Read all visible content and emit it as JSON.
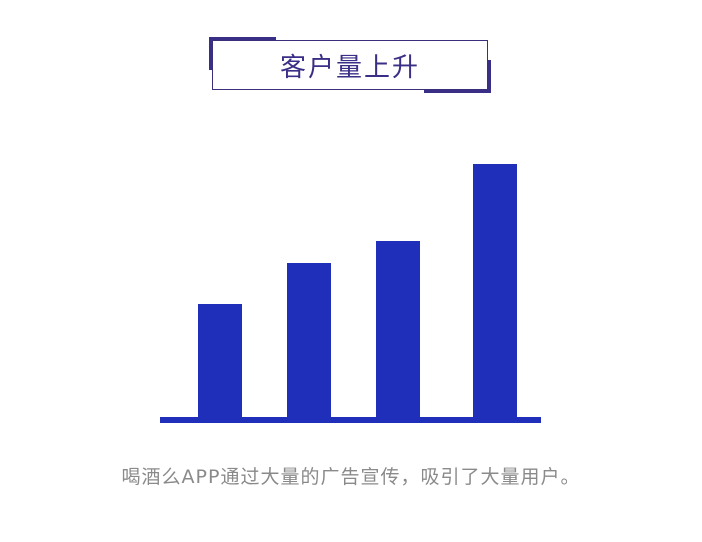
{
  "title": "客户量上升",
  "caption": "喝酒么APP通过大量的广告宣传，吸引了大量用户。",
  "colors": {
    "bar": "#1f2fba",
    "title": "#3a2f86",
    "caption": "#8a8a8a"
  },
  "chart_data": {
    "type": "bar",
    "categories": [
      "",
      "",
      "",
      ""
    ],
    "values": [
      115,
      156,
      178,
      255
    ],
    "title": "",
    "xlabel": "",
    "ylabel": "",
    "ylim": [
      0,
      260
    ],
    "grid": false,
    "baseline": true
  }
}
